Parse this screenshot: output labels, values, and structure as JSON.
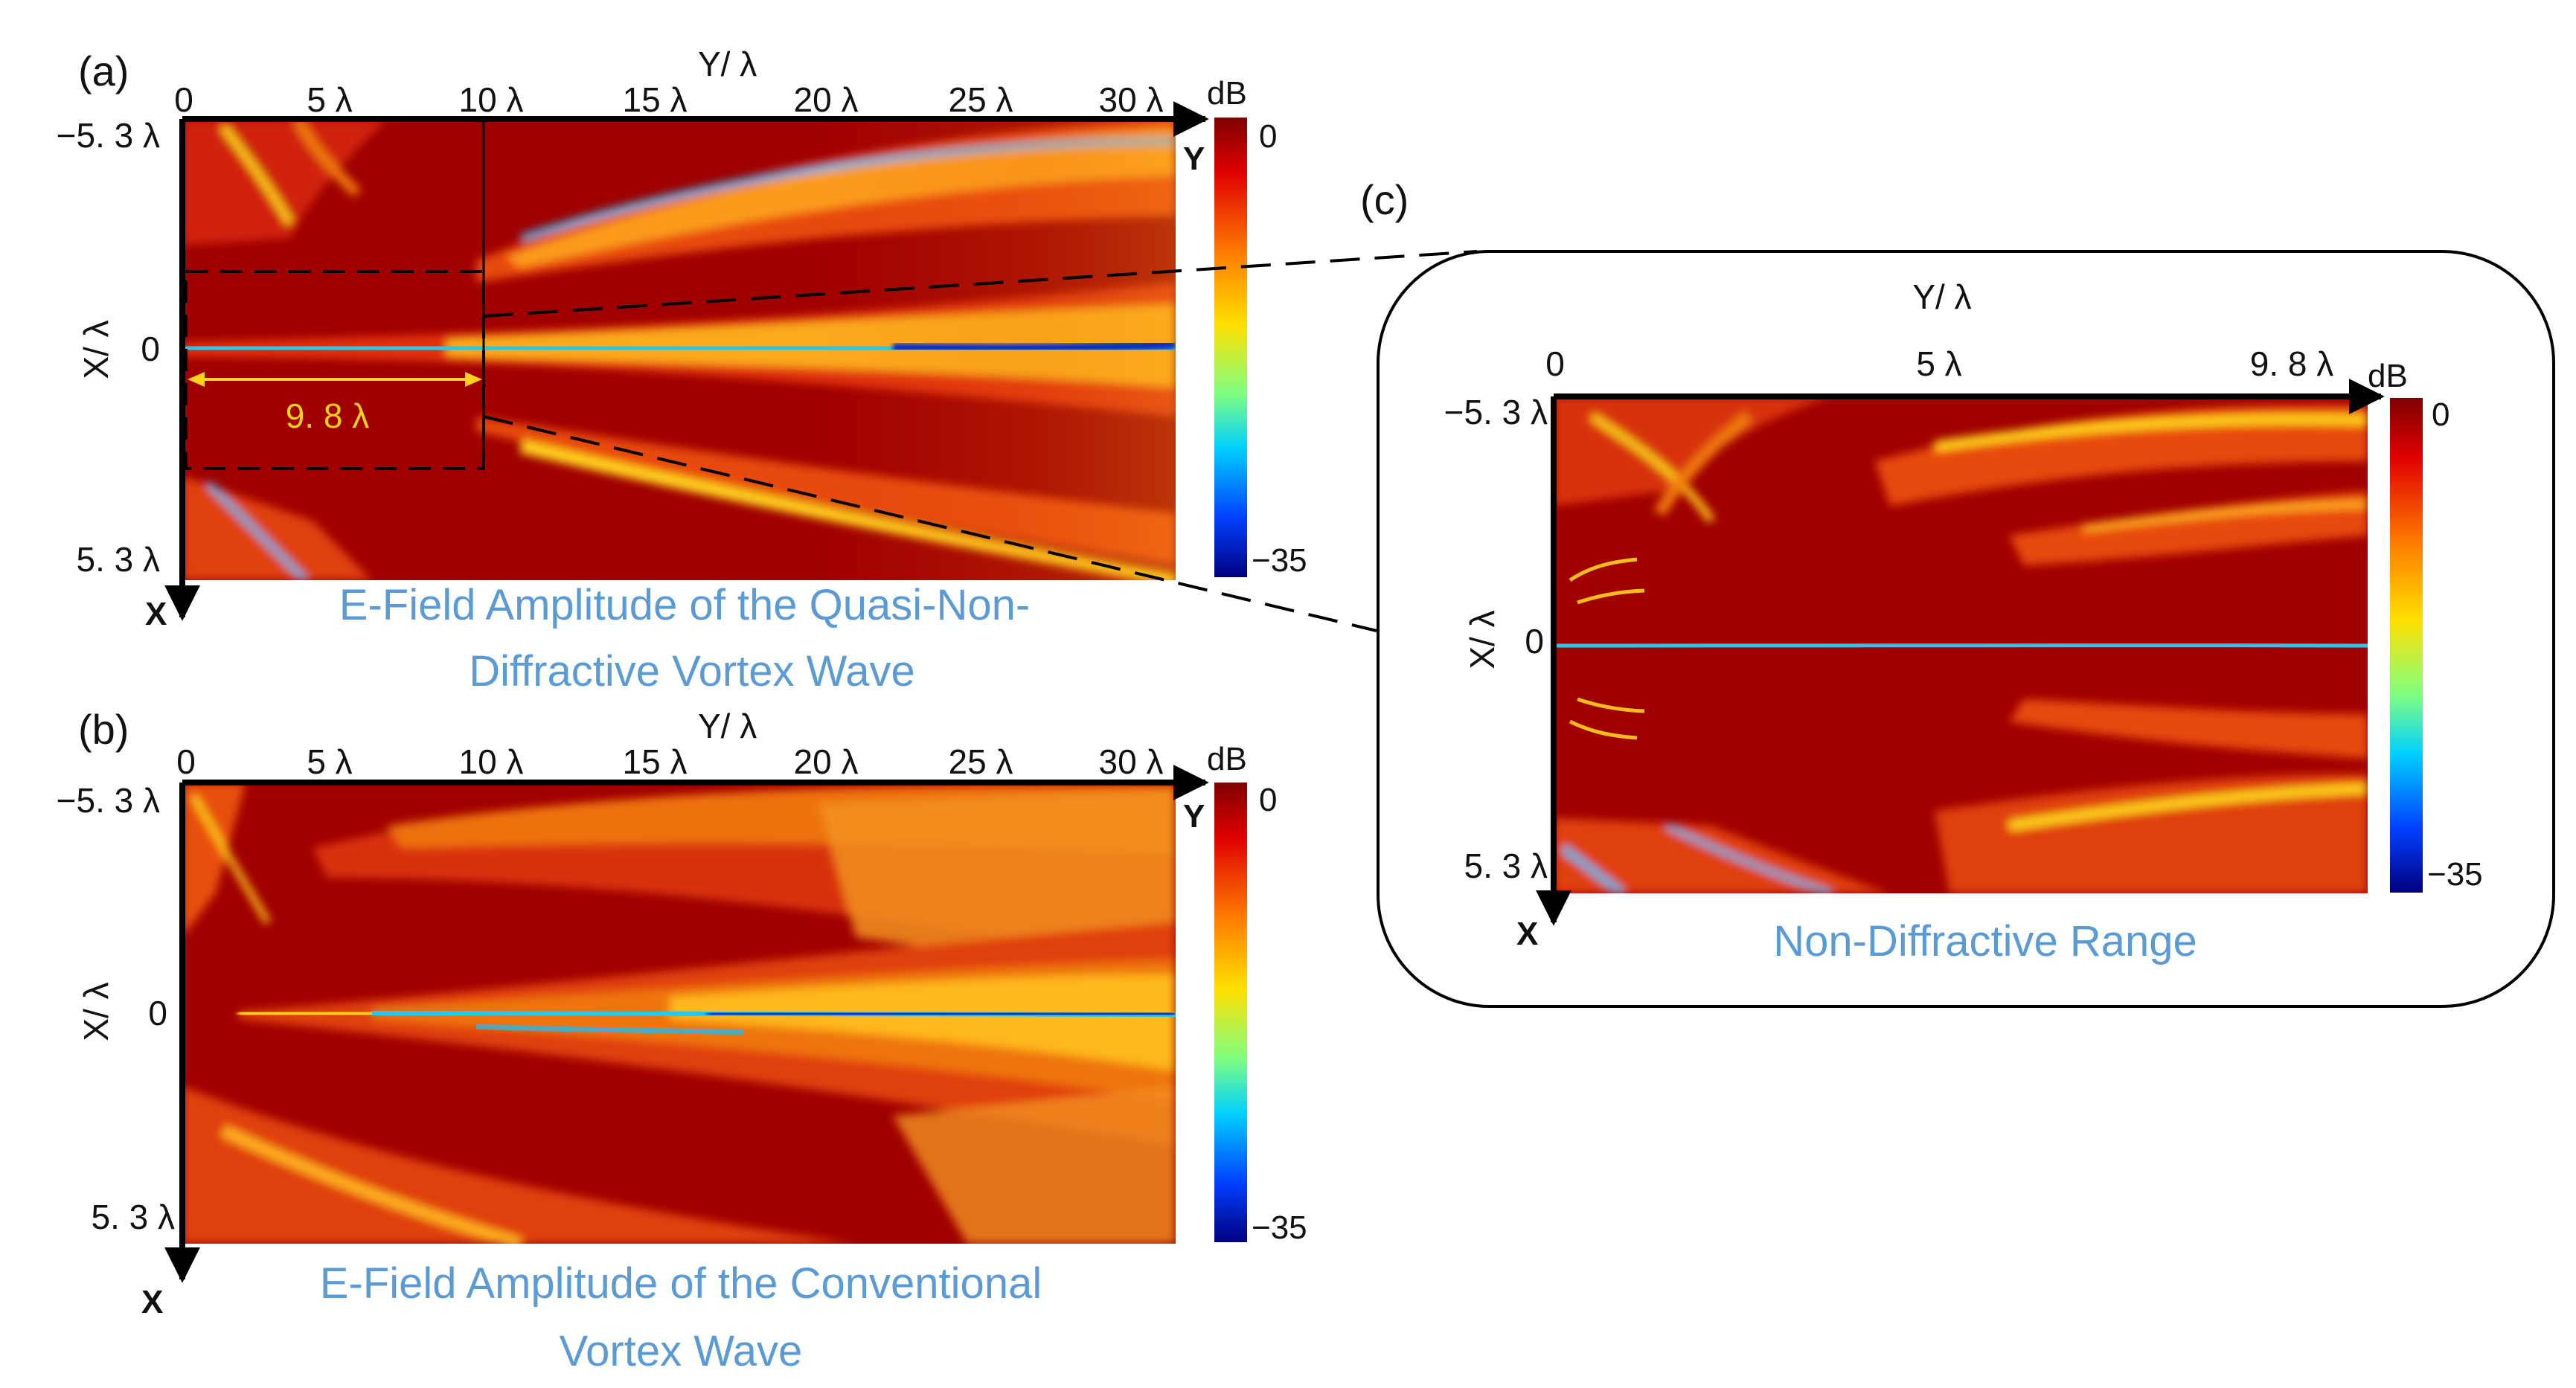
{
  "panels": {
    "a": {
      "label": "(a)",
      "x_axis_title": "Y/ λ",
      "y_axis_title": "X/ λ",
      "x_ticks": [
        "0",
        "5 λ",
        "10 λ",
        "15 λ",
        "20 λ",
        "25 λ",
        "30 λ"
      ],
      "y_ticks": [
        "−5. 3 λ",
        "0",
        "5. 3 λ"
      ],
      "y_arrow_label": "X",
      "x_arrow_label": "Y",
      "colorbar_unit": "dB",
      "colorbar_max": "0",
      "colorbar_min": "−35",
      "annotation": "9. 8 λ",
      "caption_line1": "E-Field Amplitude of the Quasi-Non-",
      "caption_line2": "Diffractive Vortex Wave"
    },
    "b": {
      "label": "(b)",
      "x_axis_title": "Y/ λ",
      "y_axis_title": "X/ λ",
      "x_ticks": [
        "0",
        "5 λ",
        "10 λ",
        "15 λ",
        "20 λ",
        "25 λ",
        "30 λ"
      ],
      "y_ticks": [
        "−5. 3 λ",
        "0",
        "5. 3 λ"
      ],
      "y_arrow_label": "X",
      "x_arrow_label": "Y",
      "colorbar_unit": "dB",
      "colorbar_max": "0",
      "colorbar_min": "−35",
      "caption_line1": "E-Field Amplitude of the  Conventional",
      "caption_line2": "Vortex Wave"
    },
    "c": {
      "label": "(c)",
      "x_axis_title": "Y/ λ",
      "y_axis_title": "X/ λ",
      "x_ticks": [
        "0",
        "5 λ",
        "9. 8 λ"
      ],
      "y_ticks": [
        "−5. 3 λ",
        "0",
        "5. 3 λ"
      ],
      "y_arrow_label": "X",
      "colorbar_unit": "dB",
      "colorbar_max": "0",
      "colorbar_min": "−35",
      "caption": "Non-Diffractive Range"
    }
  },
  "colors": {
    "caption_blue": "#5b9bd5",
    "annotation_yellow": "#ffd21f",
    "field_dark_red": "#8b0000",
    "field_red": "#d42a0a",
    "field_orange": "#f07a10",
    "field_yellow": "#ffd21f",
    "field_cyan": "#1ec8e8",
    "field_blue": "#1030c0"
  }
}
